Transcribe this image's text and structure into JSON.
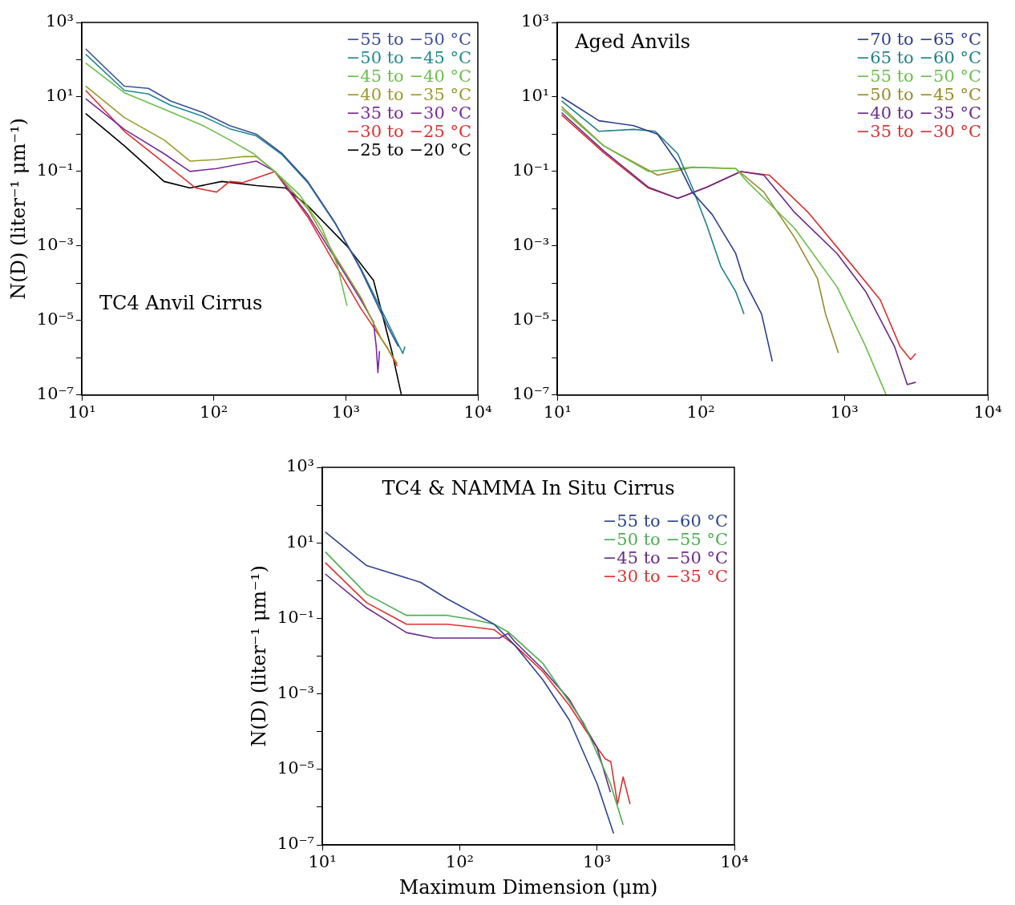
{
  "chart_data": [
    {
      "type": "line",
      "title": "TC4 Anvil Cirrus",
      "ylabel": "N(D) (liter⁻¹ μm⁻¹)",
      "log": "xy",
      "legend": "top right",
      "xlim": [
        10,
        10000
      ],
      "ylim": [
        1e-07,
        1000
      ],
      "xticks": [
        {
          "value": 10,
          "label": "10¹"
        },
        {
          "value": 100,
          "label": "10²"
        },
        {
          "value": 1000,
          "label": "10³"
        },
        {
          "value": 10000,
          "label": "10⁴"
        }
      ],
      "yticks": [
        {
          "value": 1e-07,
          "label": "10⁻⁷"
        },
        {
          "value": 1e-06,
          "label": null
        },
        {
          "value": 1e-05,
          "label": "10⁻⁵"
        },
        {
          "value": 0.0001,
          "label": null
        },
        {
          "value": 0.001,
          "label": "10⁻³"
        },
        {
          "value": 0.01,
          "label": null
        },
        {
          "value": 0.1,
          "label": "10⁻¹"
        },
        {
          "value": 1,
          "label": null
        },
        {
          "value": 10,
          "label": "10¹"
        },
        {
          "value": 100,
          "label": null
        },
        {
          "value": 1000,
          "label": "10³"
        }
      ],
      "series": [
        {
          "name": "−55 to −50 °C",
          "color": "#3b4f9e",
          "x": [
            10.7,
            21,
            32,
            47,
            83,
            132,
            210,
            330,
            515,
            830,
            1300,
            2040,
            2500
          ],
          "values": [
            195,
            19.5,
            17,
            7.8,
            3.8,
            1.7,
            1.0,
            0.3,
            0.054,
            0.0042,
            0.00023,
            7.8e-06,
            2e-06
          ]
        },
        {
          "name": "−50 to −45 °C",
          "color": "#1f8a8f",
          "x": [
            10.7,
            21,
            32,
            47,
            83,
            132,
            210,
            330,
            515,
            830,
            1300,
            2040,
            2700,
            2800
          ],
          "values": [
            140,
            15,
            12,
            6,
            3,
            1.4,
            0.9,
            0.28,
            0.05,
            0.004,
            0.00025,
            1e-05,
            1.3e-06,
            2e-06
          ]
        },
        {
          "name": "−45 to −40 °C",
          "color": "#6abf4b",
          "x": [
            10.7,
            21,
            42,
            83,
            132,
            200,
            290,
            450,
            660,
            860,
            1020
          ],
          "values": [
            81,
            13,
            4.7,
            1.7,
            0.7,
            0.3,
            0.1,
            0.023,
            0.003,
            0.00032,
            2.5e-05
          ]
        },
        {
          "name": "−40 to −35 °C",
          "color": "#9a9a2a",
          "x": [
            10.7,
            21,
            42,
            66,
            105,
            165,
            210,
            290,
            515,
            830,
            1300,
            1860,
            2450
          ],
          "values": [
            19.5,
            2.8,
            0.7,
            0.19,
            0.21,
            0.25,
            0.25,
            0.1,
            0.01,
            0.00054,
            4.2e-05,
            3.2e-06,
            7e-07
          ]
        },
        {
          "name": "−35 to −30 °C",
          "color": "#7a2a9a",
          "x": [
            10.7,
            21,
            42,
            66,
            105,
            210,
            290,
            515,
            830,
            1300,
            1620,
            1700,
            1750,
            1800
          ],
          "values": [
            9,
            1.35,
            0.3,
            0.1,
            0.12,
            0.19,
            0.1,
            0.007,
            0.00047,
            3.6e-05,
            9e-06,
            2e-06,
            4e-07,
            1.5e-06
          ]
        },
        {
          "name": "−30 to −25 °C",
          "color": "#e03030",
          "x": [
            10.7,
            21,
            42,
            73,
            105,
            132,
            165,
            290,
            515,
            830,
            1300,
            2040,
            2450
          ],
          "values": [
            15,
            1.2,
            0.17,
            0.036,
            0.028,
            0.054,
            0.05,
            0.1,
            0.006,
            0.00032,
            2.1e-05,
            2e-06,
            6e-07
          ]
        },
        {
          "name": "−25 to −20 °C",
          "color": "#000000",
          "x": [
            10.7,
            21,
            42,
            66,
            115,
            210,
            350,
            515,
            1020,
            1620,
            2240,
            2630
          ],
          "values": [
            3.6,
            0.49,
            0.054,
            0.036,
            0.054,
            0.042,
            0.036,
            0.012,
            0.001,
            0.00012,
            1.4e-06,
            1.05e-07
          ]
        }
      ]
    },
    {
      "type": "line",
      "title": "Aged Anvils",
      "log": "xy",
      "legend": "top right",
      "xlim": [
        10,
        10000
      ],
      "ylim": [
        1e-07,
        1000
      ],
      "xticks": [
        {
          "value": 10,
          "label": "10¹"
        },
        {
          "value": 100,
          "label": "10²"
        },
        {
          "value": 1000,
          "label": "10³"
        },
        {
          "value": 10000,
          "label": "10⁴"
        }
      ],
      "yticks": [
        {
          "value": 1e-07,
          "label": "10⁻⁷"
        },
        {
          "value": 1e-06,
          "label": null
        },
        {
          "value": 1e-05,
          "label": "10⁻⁵"
        },
        {
          "value": 0.0001,
          "label": null
        },
        {
          "value": 0.001,
          "label": "10⁻³"
        },
        {
          "value": 0.01,
          "label": null
        },
        {
          "value": 0.1,
          "label": "10⁻¹"
        },
        {
          "value": 1,
          "label": null
        },
        {
          "value": 10,
          "label": "10¹"
        },
        {
          "value": 100,
          "label": null
        },
        {
          "value": 1000,
          "label": "10³"
        }
      ],
      "series": [
        {
          "name": "−70 to −65 °C",
          "color": "#2c3e8f",
          "x": [
            10.7,
            19.5,
            34,
            50,
            69,
            87,
            120,
            175,
            200,
            265,
            315
          ],
          "values": [
            10,
            2.3,
            1.7,
            1.0,
            0.17,
            0.028,
            0.007,
            0.00063,
            0.00012,
            1.5e-05,
            8e-07
          ]
        },
        {
          "name": "−65 to −60 °C",
          "color": "#1f7f8a",
          "x": [
            10.7,
            19.5,
            34,
            48,
            69,
            87,
            110,
            138,
            175,
            200
          ],
          "values": [
            7.8,
            1.2,
            1.35,
            1.2,
            0.3,
            0.038,
            0.0036,
            0.00028,
            6e-05,
            1.5e-05
          ]
        },
        {
          "name": "−55 to −50 °C",
          "color": "#6abf4b",
          "x": [
            10.7,
            21,
            43,
            87,
            175,
            210,
            450,
            890,
            1410,
            1950
          ],
          "values": [
            4.7,
            0.49,
            0.1,
            0.13,
            0.12,
            0.054,
            0.003,
            8e-05,
            2e-06,
            1.05e-07
          ]
        },
        {
          "name": "−50 to −45 °C",
          "color": "#9a8a2a",
          "x": [
            10.7,
            21,
            50,
            87,
            175,
            275,
            450,
            650,
            740,
            910
          ],
          "values": [
            5.5,
            0.49,
            0.08,
            0.13,
            0.12,
            0.028,
            0.0017,
            0.000135,
            1.5e-05,
            1.35e-06
          ]
        },
        {
          "name": "−40 to −35 °C",
          "color": "#6a2a8a",
          "x": [
            10.7,
            21,
            43,
            69,
            110,
            190,
            275,
            450,
            890,
            1410,
            2240,
            2750,
            3150
          ],
          "values": [
            3.8,
            0.36,
            0.038,
            0.019,
            0.038,
            0.1,
            0.08,
            0.008,
            0.00063,
            6e-05,
            2e-06,
            1.9e-07,
            2.2e-07
          ]
        },
        {
          "name": "−35 to −30 °C",
          "color": "#d93030",
          "x": [
            10.7,
            21,
            43,
            69,
            110,
            190,
            300,
            560,
            1120,
            1780,
            2450,
            2900,
            3150
          ],
          "values": [
            3.3,
            0.32,
            0.036,
            0.019,
            0.038,
            0.1,
            0.08,
            0.008,
            0.00032,
            3.6e-05,
            2e-06,
            9e-07,
            1.3e-06
          ]
        }
      ]
    },
    {
      "type": "line",
      "title": "TC4 & NAMMA In Situ Cirrus",
      "xlabel": "Maximum Dimension (μm)",
      "ylabel": "N(D) (liter⁻¹ μm⁻¹)",
      "log": "xy",
      "legend": "top right",
      "xlim": [
        10,
        10000
      ],
      "ylim": [
        1e-07,
        1000
      ],
      "xticks": [
        {
          "value": 10,
          "label": "10¹"
        },
        {
          "value": 100,
          "label": "10²"
        },
        {
          "value": 1000,
          "label": "10³"
        },
        {
          "value": 10000,
          "label": "10⁴"
        }
      ],
      "yticks": [
        {
          "value": 1e-07,
          "label": "10⁻⁷"
        },
        {
          "value": 1e-06,
          "label": null
        },
        {
          "value": 1e-05,
          "label": "10⁻⁵"
        },
        {
          "value": 0.0001,
          "label": null
        },
        {
          "value": 0.001,
          "label": "10⁻³"
        },
        {
          "value": 0.01,
          "label": null
        },
        {
          "value": 0.1,
          "label": "10⁻¹"
        },
        {
          "value": 1,
          "label": null
        },
        {
          "value": 10,
          "label": "10¹"
        },
        {
          "value": 100,
          "label": null
        },
        {
          "value": 1000,
          "label": "10³"
        }
      ],
      "series": [
        {
          "name": "−55 to −60 °C",
          "color": "#2c4590",
          "x": [
            10.5,
            21,
            52,
            81,
            130,
            178,
            250,
            405,
            630,
            1000,
            1320
          ],
          "values": [
            19.5,
            2.5,
            0.9,
            0.33,
            0.13,
            0.07,
            0.02,
            0.0023,
            0.0002,
            4.2e-06,
            2e-07
          ]
        },
        {
          "name": "−50 to −55 °C",
          "color": "#4caf50",
          "x": [
            10.5,
            21,
            41,
            81,
            130,
            178,
            225,
            405,
            800,
            1250,
            1550
          ],
          "values": [
            5.8,
            0.44,
            0.12,
            0.12,
            0.09,
            0.07,
            0.044,
            0.0063,
            0.00017,
            4.2e-06,
            3.4e-07
          ]
        },
        {
          "name": "−45 to −50 °C",
          "color": "#6a2a8a",
          "x": [
            10.5,
            21,
            41,
            65,
            130,
            195,
            225,
            250,
            405,
            630,
            1000,
            1250
          ],
          "values": [
            1.5,
            0.19,
            0.042,
            0.03,
            0.03,
            0.03,
            0.04,
            0.025,
            0.0044,
            0.0007,
            3.8e-05,
            2.5e-06
          ]
        },
        {
          "name": "−30 to −35 °C",
          "color": "#e03030",
          "x": [
            10.5,
            21,
            41,
            81,
            130,
            178,
            250,
            405,
            630,
            1000,
            1150,
            1260,
            1410,
            1550,
            1740
          ],
          "values": [
            3,
            0.26,
            0.07,
            0.07,
            0.058,
            0.05,
            0.02,
            0.0038,
            0.00049,
            3.8e-05,
            1.9e-05,
            1.6e-05,
            1.2e-06,
            6.3e-06,
            1.2e-06
          ]
        }
      ]
    }
  ]
}
